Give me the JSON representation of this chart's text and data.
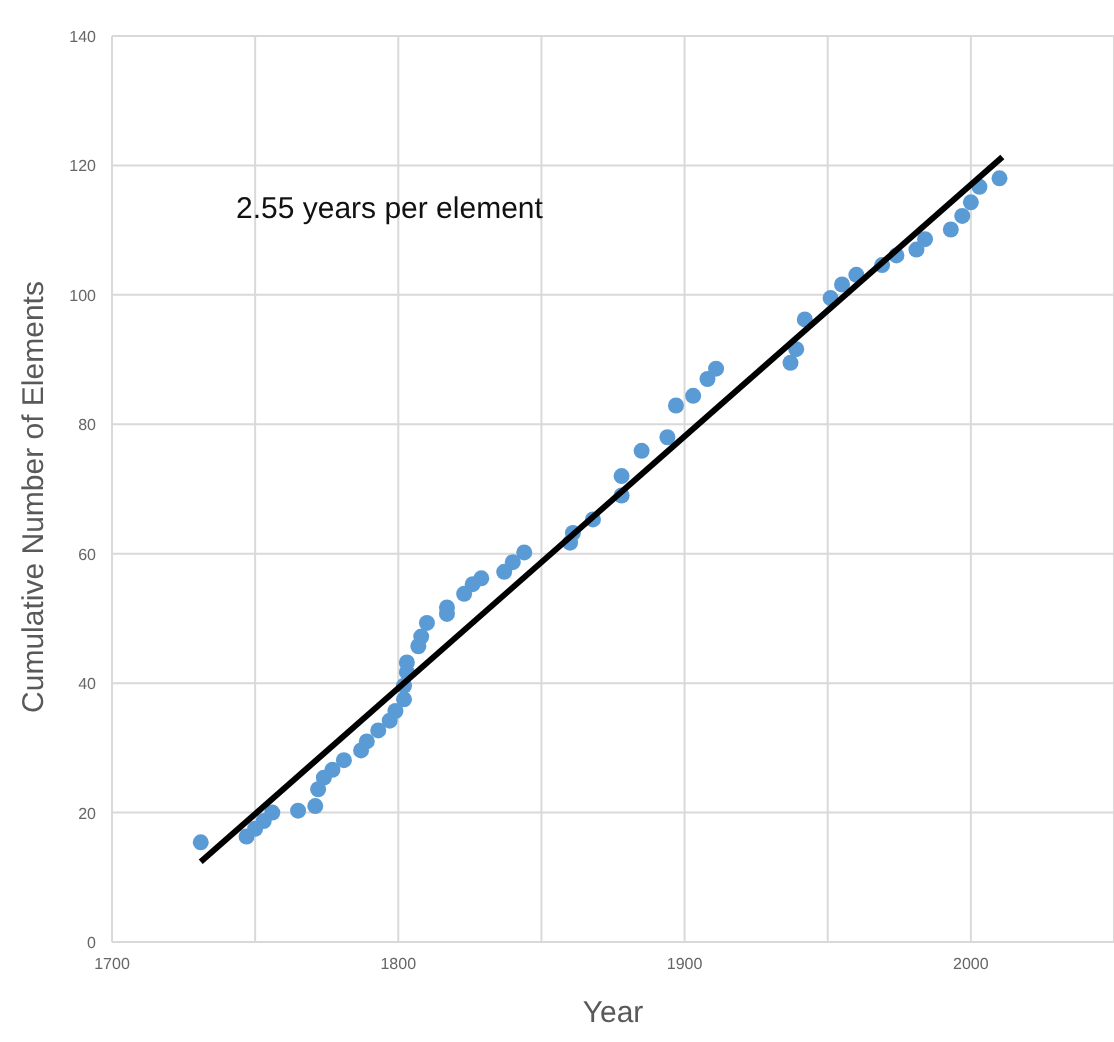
{
  "chart_data": {
    "type": "scatter",
    "xlabel": "Year",
    "ylabel": "Cumulative Number of Elements",
    "annotations": [
      "2.55 years per element"
    ],
    "xlim": [
      1700,
      2050
    ],
    "xticks": [
      1700,
      {
        "value": 1750,
        "label": null
      },
      1800,
      {
        "value": 1850,
        "label": null
      },
      1900,
      {
        "value": 1950,
        "label": null
      },
      2000
    ],
    "ylim": [
      0,
      140
    ],
    "yticks": [
      0,
      20,
      40,
      60,
      80,
      100,
      120,
      140
    ],
    "grid": true,
    "series": [
      {
        "marker": "circle",
        "color": "#5b9bd5",
        "x": [
          1731,
          1747,
          1750,
          1753,
          1756,
          1765,
          1771,
          1772,
          1774,
          1777,
          1781,
          1787,
          1789,
          1793,
          1797,
          1799,
          1802,
          1802,
          1803,
          1803,
          1807,
          1808,
          1810,
          1817,
          1817,
          1823,
          1826,
          1829,
          1837,
          1840,
          1844,
          1860,
          1861,
          1868,
          1878,
          1878,
          1885,
          1894,
          1897,
          1903,
          1908,
          1911,
          1937,
          1939,
          1942,
          1951,
          1955,
          1960,
          1969,
          1974,
          1981,
          1984,
          1993,
          1997,
          2000,
          2003,
          2010
        ],
        "values": [
          15.4,
          16.3,
          17.5,
          18.7,
          20,
          20.3,
          21,
          23.6,
          25.4,
          26.6,
          28.1,
          29.6,
          31,
          32.7,
          34.2,
          35.7,
          37.5,
          39.6,
          41.7,
          43.2,
          45.7,
          47.2,
          49.3,
          50.7,
          51.7,
          53.8,
          55.3,
          56.2,
          57.2,
          58.7,
          60.2,
          61.7,
          63.2,
          65.3,
          69,
          72,
          75.9,
          78,
          82.9,
          84.4,
          87,
          88.6,
          89.5,
          91.6,
          96.2,
          99.5,
          101.6,
          103.1,
          104.6,
          106.1,
          107,
          108.6,
          110.1,
          112.2,
          114.3,
          116.7,
          118
        ]
      },
      {
        "type": "line",
        "marker": "none",
        "line_style": "solid",
        "color": "#000000",
        "x": [
          1731,
          2011
        ],
        "values": [
          12.4,
          121.3
        ]
      }
    ]
  }
}
